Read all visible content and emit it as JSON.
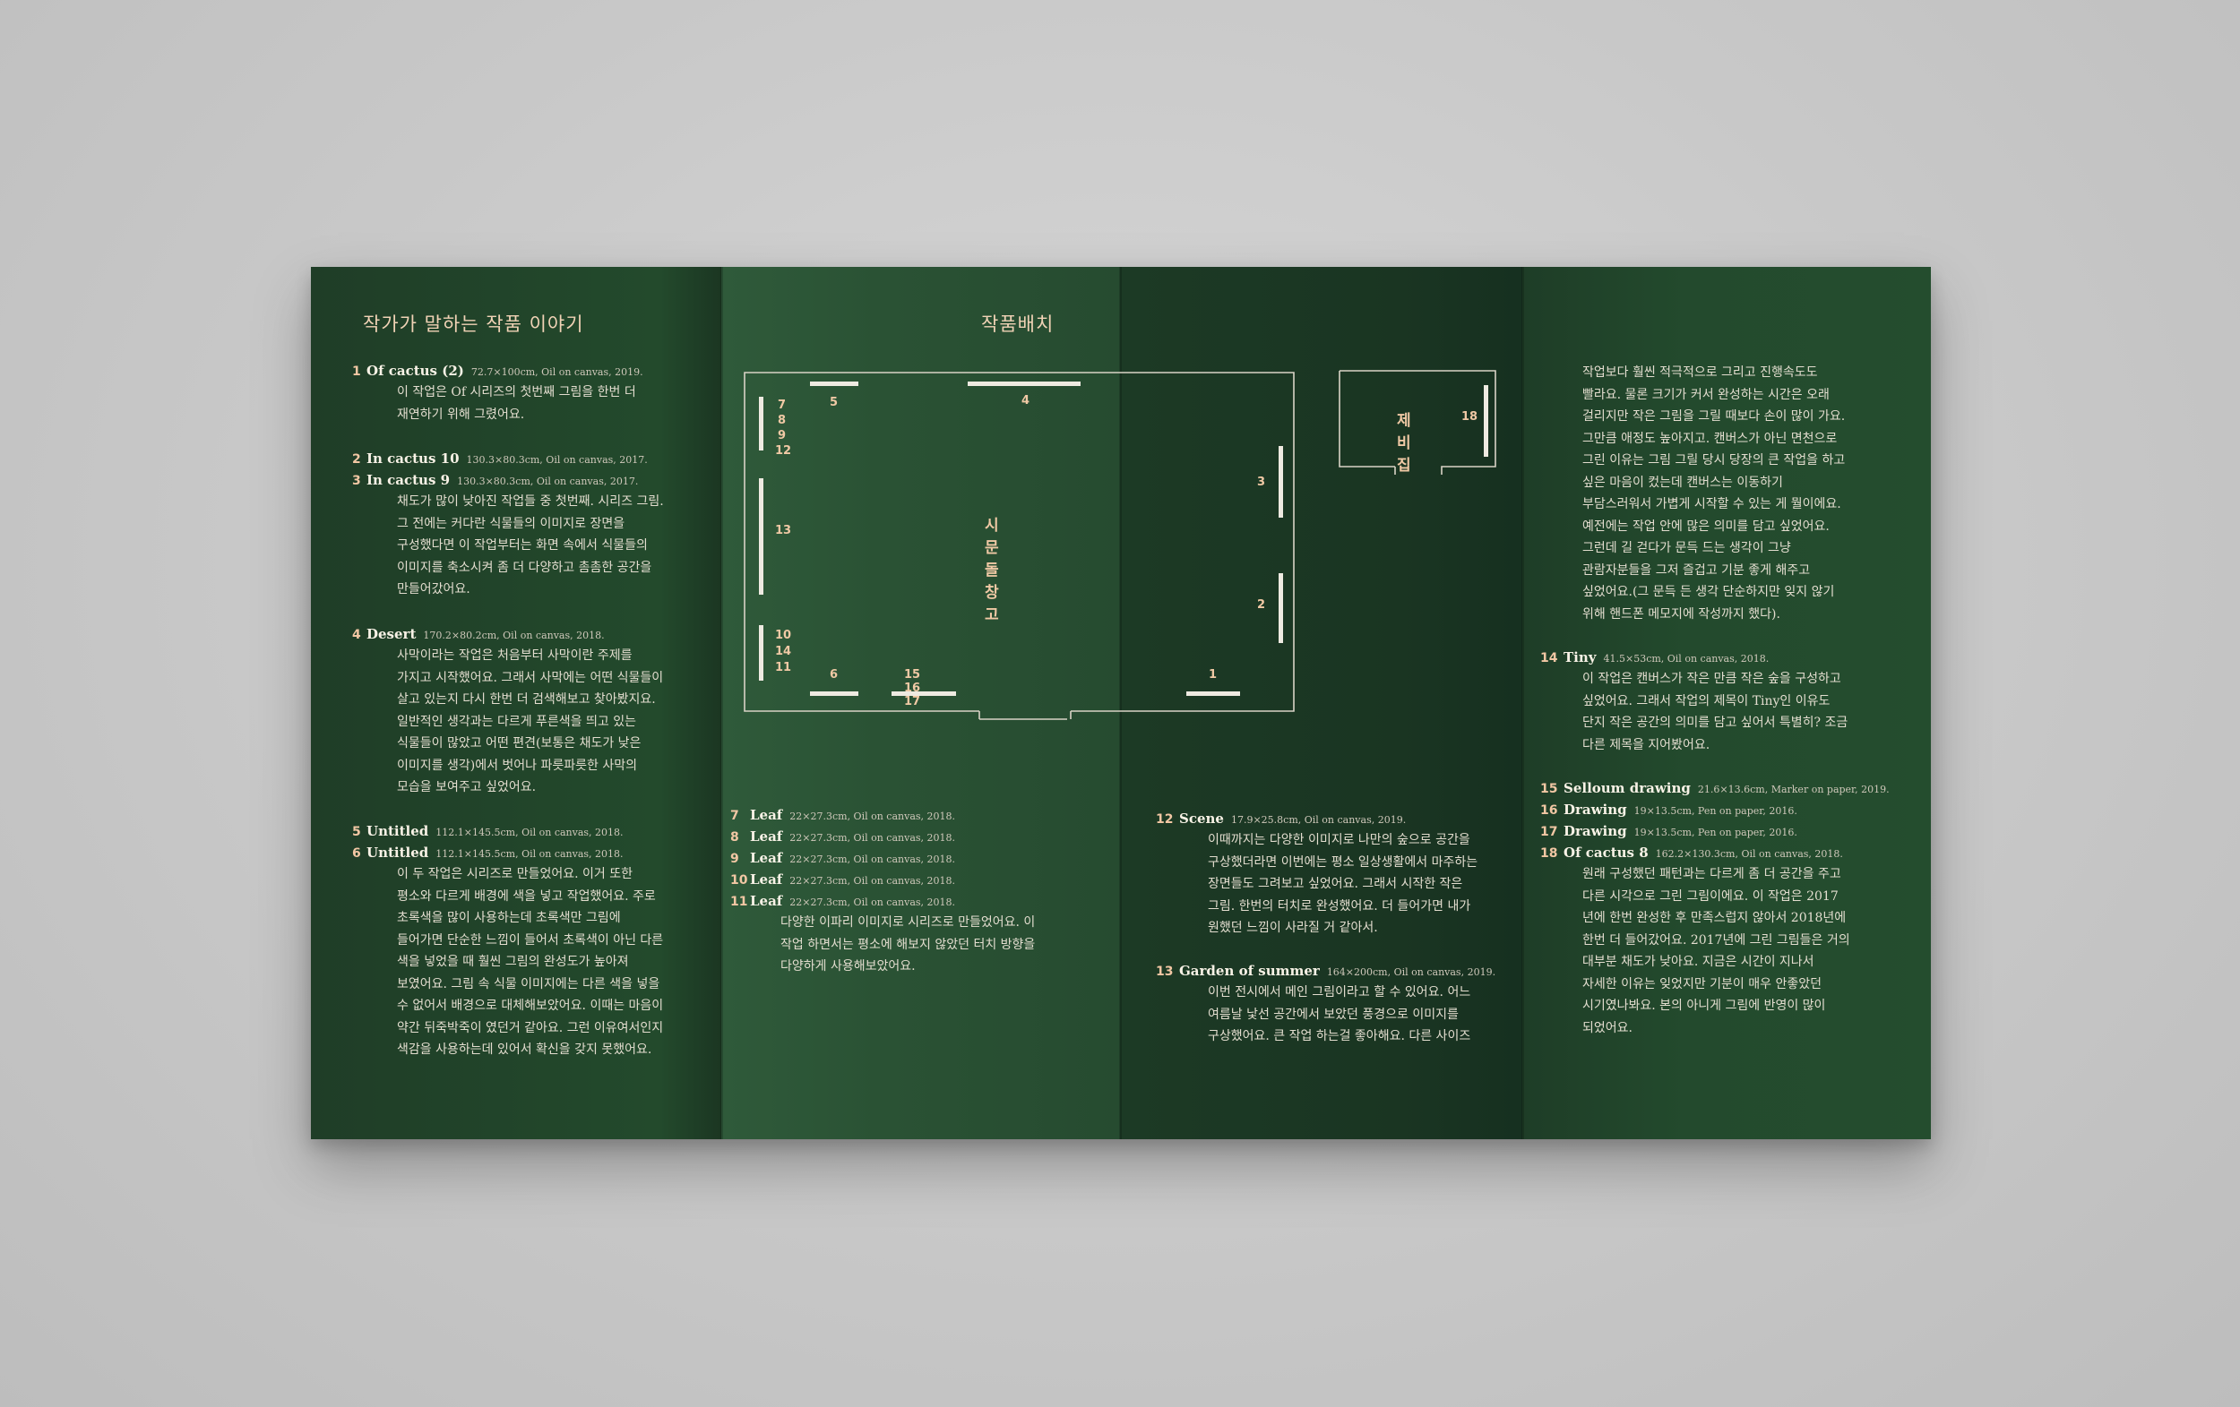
{
  "panel1": {
    "title": "작가가 말하는 작품 이야기",
    "entries": [
      {
        "lines": [
          {
            "num": "1",
            "name": "Of cactus (2)",
            "meta": "72.7×100cm, Oil on canvas, 2019."
          }
        ],
        "desc": "이 작업은 Of 시리즈의 첫번째 그림을 한번 더\n재연하기 위해 그렸어요."
      },
      {
        "lines": [
          {
            "num": "2",
            "name": "In cactus 10",
            "meta": "130.3×80.3cm, Oil on canvas, 2017."
          },
          {
            "num": "3",
            "name": "In cactus 9",
            "meta": "130.3×80.3cm, Oil on canvas, 2017."
          }
        ],
        "desc": "채도가 많이 낮아진 작업들 중 첫번째. 시리즈 그림.\n그 전에는 커다란 식물들의 이미지로 장면을\n구성했다면  이 작업부터는 화면 속에서 식물들의\n이미지를 축소시켜 좀 더 다양하고 촘촘한 공간을\n만들어갔어요."
      },
      {
        "lines": [
          {
            "num": "4",
            "name": "Desert",
            "meta": "170.2×80.2cm, Oil on canvas, 2018."
          }
        ],
        "desc": "사막이라는 작업은 처음부터 사막이란 주제를\n가지고 시작했어요. 그래서 사막에는 어떤 식물들이\n살고 있는지 다시 한번 더 검색해보고 찾아봤지요.\n일반적인 생각과는 다르게 푸른색을 띄고 있는\n식물들이 많았고 어떤 편견(보통은 채도가 낮은\n이미지를 생각)에서 벗어나 파릇파릇한 사막의\n모습을 보여주고 싶었어요."
      },
      {
        "lines": [
          {
            "num": "5",
            "name": "Untitled",
            "meta": "112.1×145.5cm, Oil on canvas, 2018."
          },
          {
            "num": "6",
            "name": "Untitled",
            "meta": "112.1×145.5cm, Oil on canvas, 2018."
          }
        ],
        "desc": "이 두 작업은 시리즈로 만들었어요. 이거 또한\n평소와 다르게 배경에 색을 넣고 작업했어요. 주로\n초록색을 많이 사용하는데 초록색만 그림에\n들어가면 단순한 느낌이 들어서 초록색이 아닌 다른\n색을 넣었을 때 훨씬 그림의 완성도가 높아져\n보였어요. 그림 속 식물 이미지에는 다른 색을 넣을\n수 없어서 배경으로 대체해보았어요. 이때는 마음이\n약간 뒤죽박죽이 였던거 같아요. 그런 이유여서인지\n색감을 사용하는데 있어서 확신을 갖지 못했어요."
      }
    ]
  },
  "panel2": {
    "title": "작품배치",
    "room_label": "시문돌창고",
    "entries": [
      {
        "lines": [
          {
            "num": "7",
            "name": "Leaf",
            "meta": "22×27.3cm, Oil on canvas, 2018."
          },
          {
            "num": "8",
            "name": "Leaf",
            "meta": "22×27.3cm, Oil on canvas, 2018."
          },
          {
            "num": "9",
            "name": "Leaf",
            "meta": "22×27.3cm, Oil on canvas, 2018."
          },
          {
            "num": "10",
            "name": "Leaf",
            "meta": "22×27.3cm, Oil on canvas, 2018."
          },
          {
            "num": "11",
            "name": "Leaf",
            "meta": "22×27.3cm, Oil on canvas, 2018."
          }
        ],
        "desc": "다양한 이파리 이미지로 시리즈로 만들었어요. 이\n작업 하면서는 평소에 해보지 않았던 터치 방향을\n다양하게 사용해보았어요."
      }
    ]
  },
  "panel3": {
    "room_label": "제비집",
    "entries": [
      {
        "lines": [
          {
            "num": "12",
            "name": "Scene",
            "meta": "17.9×25.8cm, Oil on canvas, 2019."
          }
        ],
        "desc": "이때까지는 다양한 이미지로 나만의 숲으로 공간을\n구상했더라면 이번에는 평소 일상생활에서 마주하는\n장면들도 그려보고 싶었어요. 그래서 시작한 작은\n그림. 한번의 터치로 완성했어요. 더 들어가면 내가\n원했던 느낌이 사라질 거 같아서."
      },
      {
        "lines": [
          {
            "num": "13",
            "name": "Garden of summer",
            "meta": "164×200cm, Oil on canvas, 2019."
          }
        ],
        "desc": "이번 전시에서 메인 그림이라고 할 수 있어요. 어느\n여름날 낯선 공간에서 보았던 풍경으로 이미지를\n구상했어요. 큰 작업 하는걸 좋아해요. 다른 사이즈"
      }
    ]
  },
  "panel4": {
    "intro": "작업보다 훨씬 적극적으로 그리고 진행속도도\n빨라요. 물론 크기가 커서 완성하는 시간은 오래\n걸리지만 작은 그림을 그릴 때보다  손이 많이 가요.\n그만큼 애정도 높아지고. 캔버스가 아닌 면천으로\n그린 이유는 그림 그릴 당시 당장의 큰 작업을 하고\n싶은 마음이 컸는데 캔버스는 이동하기\n부담스러워서 가볍게 시작할 수 있는 게 뭘이에요.\n예전에는 작업 안에 많은 의미를 담고 싶었어요.\n그런데 길 걷다가 문득 드는 생각이 그냥\n관람자분들을 그저 즐겁고 기분 좋게 해주고\n싶었어요.(그 문득 든 생각 단순하지만 잊지 않기\n위해 핸드폰 메모지에 작성까지 했다).",
    "entries": [
      {
        "lines": [
          {
            "num": "14",
            "name": "Tiny",
            "meta": "41.5×53cm, Oil on canvas, 2018."
          }
        ],
        "desc": "이 작업은 캔버스가 작은 만큼 작은 숲을 구성하고\n싶었어요. 그래서 작업의 제목이 Tiny인 이유도\n단지 작은 공간의 의미를 담고 싶어서 특별히? 조금\n다른 제목을 지어봤어요."
      },
      {
        "lines": [
          {
            "num": "15",
            "name": "Selloum drawing",
            "meta": "21.6×13.6cm, Marker on paper, 2019."
          },
          {
            "num": "16",
            "name": "Drawing",
            "meta": "19×13.5cm, Pen on paper, 2016."
          },
          {
            "num": "17",
            "name": "Drawing",
            "meta": "19×13.5cm, Pen on paper, 2016."
          },
          {
            "num": "18",
            "name": "Of cactus 8",
            "meta": "162.2×130.3cm, Oil on canvas, 2018."
          }
        ],
        "desc": "원래 구성했던 패턴과는 다르게 좀 더 공간을 주고\n다른 시각으로 그린 그림이에요. 이 작업은 2017\n년에 한번 완성한 후 만족스럽지 않아서 2018년에\n한번 더 들어갔어요. 2017년에 그린 그림들은 거의\n대부분 채도가 낮아요. 지금은 시간이 지나서\n자세한 이유는 잊었지만 기분이 매우 안좋았던\n시기였나봐요. 본의 아니게 그림에 반영이 많이\n되었어요."
      }
    ]
  },
  "plan_labels": {
    "n1": "1",
    "n2": "2",
    "n3": "3",
    "n4": "4",
    "n5": "5",
    "n6": "6",
    "n7": "7",
    "n8": "8",
    "n9": "9",
    "n10": "10",
    "n11": "11",
    "n12": "12",
    "n13": "13",
    "n14": "14",
    "n15_17": "15 16 17",
    "n18": "18"
  },
  "colors": {
    "panel_green": "#234a2c",
    "accent_peach": "#f2c7a4",
    "text_cream": "#e7e2d6",
    "background_gray": "#c8c8c8"
  }
}
